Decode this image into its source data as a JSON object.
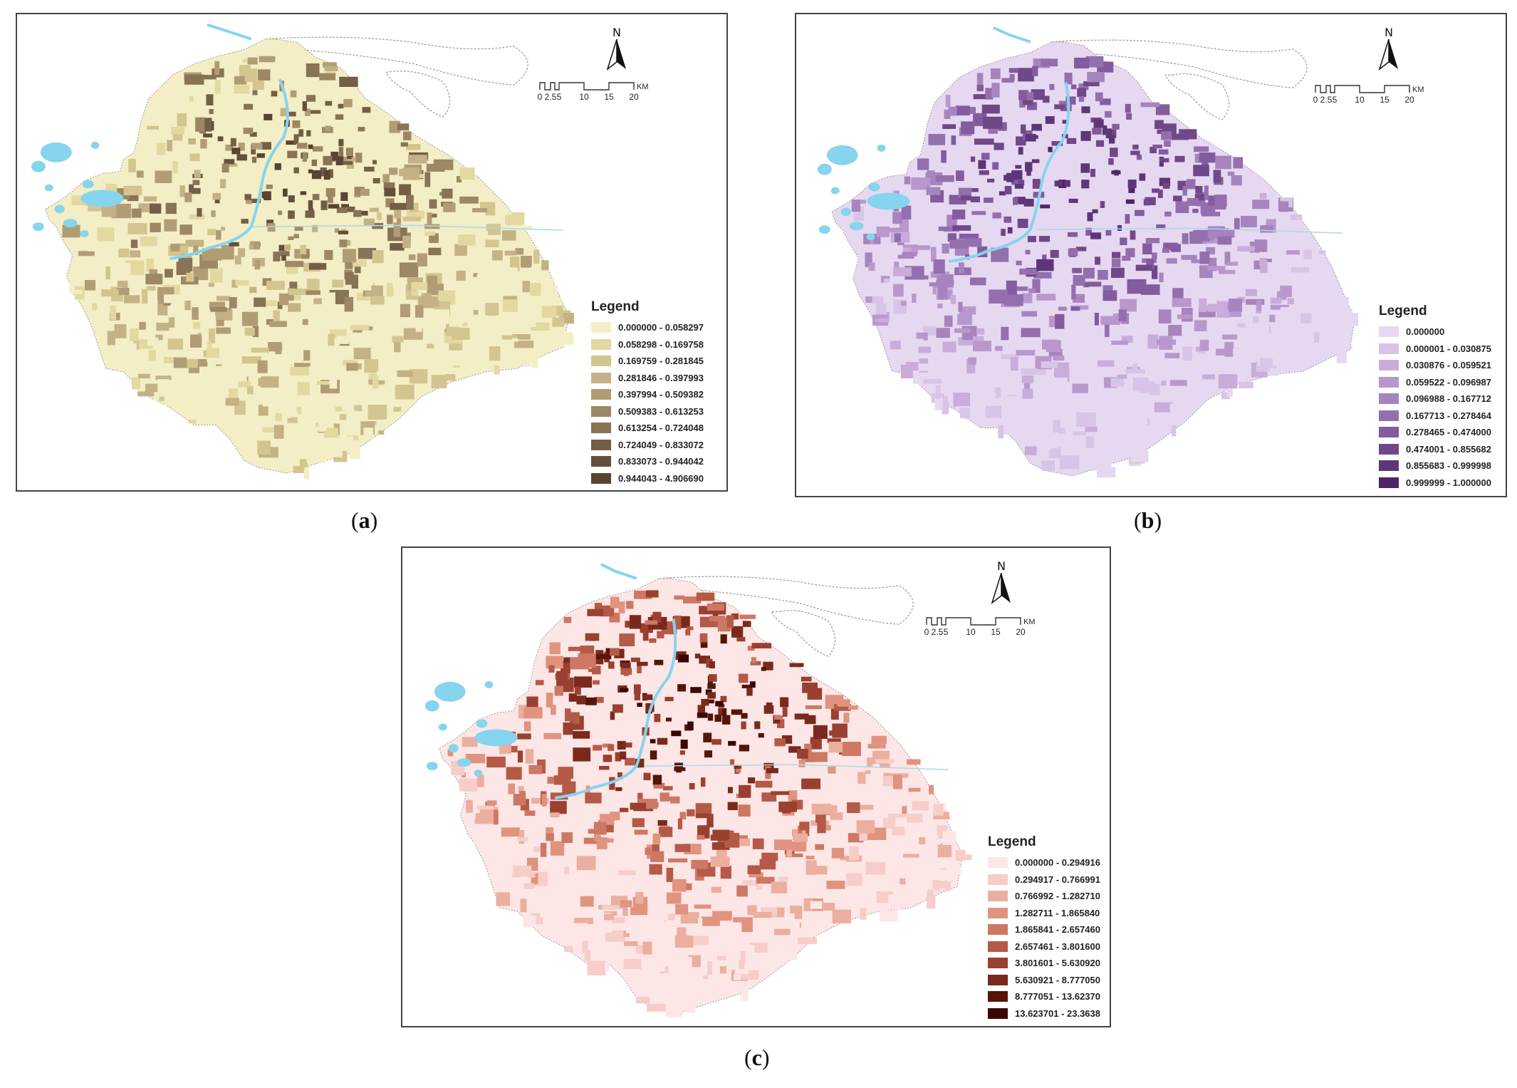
{
  "captions": {
    "a": "a",
    "b": "b",
    "c": "c"
  },
  "north_label": "N",
  "scale": {
    "ticks": [
      "0",
      "2.5",
      "5",
      "10",
      "15",
      "20"
    ],
    "unit": "KM"
  },
  "colors": {
    "water": "#86d4ee",
    "outline": "#9a9a9a"
  },
  "maps": [
    {
      "id": "a",
      "legend_title": "Legend",
      "classes": [
        {
          "label": "0.000000 - 0.058297",
          "color": "#f3eec5"
        },
        {
          "label": "0.058298 - 0.169758",
          "color": "#e2d8a0"
        },
        {
          "label": "0.169759 - 0.281845",
          "color": "#d3c590"
        },
        {
          "label": "0.281846 - 0.397993",
          "color": "#c3b285"
        },
        {
          "label": "0.397994 - 0.509382",
          "color": "#b09d76"
        },
        {
          "label": "0.509383 - 0.613253",
          "color": "#9c8865"
        },
        {
          "label": "0.613254 - 0.724048",
          "color": "#877356"
        },
        {
          "label": "0.724049 - 0.833072",
          "color": "#735f46"
        },
        {
          "label": "0.833073 - 0.944042",
          "color": "#634f3a"
        },
        {
          "label": "0.944043 - 4.906690",
          "color": "#594430"
        }
      ]
    },
    {
      "id": "b",
      "legend_title": "Legend",
      "classes": [
        {
          "label": "0.000000",
          "color": "#e6d8f0"
        },
        {
          "label": "0.000001 - 0.030875",
          "color": "#d8c4e6"
        },
        {
          "label": "0.030876 - 0.059521",
          "color": "#c8acda"
        },
        {
          "label": "0.059522 - 0.096987",
          "color": "#b898cc"
        },
        {
          "label": "0.096988 - 0.167712",
          "color": "#a684bd"
        },
        {
          "label": "0.167713 - 0.278464",
          "color": "#946fae"
        },
        {
          "label": "0.278465 - 0.474000",
          "color": "#825c9e"
        },
        {
          "label": "0.474001 - 0.855682",
          "color": "#6f4889"
        },
        {
          "label": "0.855683 - 0.999998",
          "color": "#5d3678"
        },
        {
          "label": "0.999999 - 1.000000",
          "color": "#4e2666"
        }
      ]
    },
    {
      "id": "c",
      "legend_title": "Legend",
      "classes": [
        {
          "label": "0.000000 - 0.294916",
          "color": "#fde6e6"
        },
        {
          "label": "0.294917 - 0.766991",
          "color": "#f6cdc8"
        },
        {
          "label": "0.766992 - 1.282710",
          "color": "#ecae9f"
        },
        {
          "label": "1.282711 - 1.865840",
          "color": "#e0937f"
        },
        {
          "label": "1.865841 - 2.657460",
          "color": "#cd7864"
        },
        {
          "label": "2.657461 - 3.801600",
          "color": "#b45a47"
        },
        {
          "label": "3.801601 - 5.630920",
          "color": "#99402f"
        },
        {
          "label": "5.630921 - 8.777050",
          "color": "#7a2a1c"
        },
        {
          "label": "8.777051 - 13.62370",
          "color": "#561509"
        },
        {
          "label": "13.623701 - 23.3638",
          "color": "#3a0804"
        }
      ]
    }
  ]
}
